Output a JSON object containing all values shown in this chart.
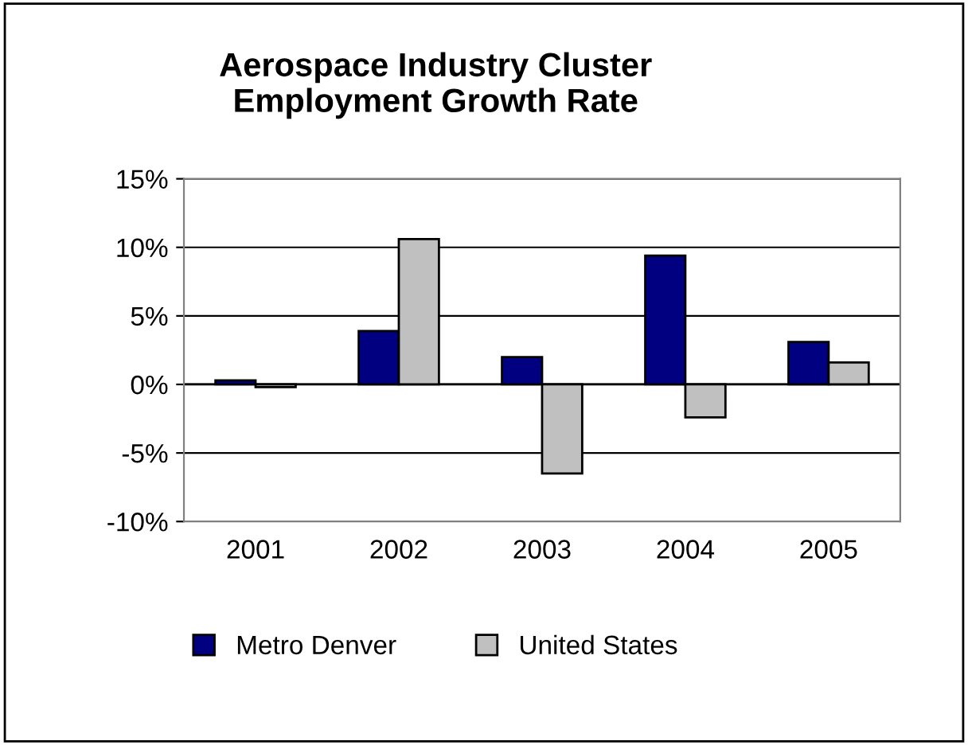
{
  "chart_data": {
    "type": "bar",
    "title": "Aerospace Industry Cluster\nEmployment Growth Rate",
    "categories": [
      "2001",
      "2002",
      "2003",
      "2004",
      "2005"
    ],
    "series": [
      {
        "name": "Metro Denver",
        "color": "#000080",
        "values": [
          0.3,
          3.9,
          2.0,
          9.4,
          3.1
        ]
      },
      {
        "name": "United States",
        "color": "#c0c0c0",
        "values": [
          -0.2,
          10.6,
          -6.5,
          -2.4,
          1.6
        ]
      }
    ],
    "ylim": [
      -10,
      15
    ],
    "yticks": [
      {
        "value": -10,
        "label": "-10%"
      },
      {
        "value": -5,
        "label": "-5%"
      },
      {
        "value": 0,
        "label": "0%"
      },
      {
        "value": 5,
        "label": "5%"
      },
      {
        "value": 10,
        "label": "10%"
      },
      {
        "value": 15,
        "label": "15%"
      }
    ],
    "grid": "y",
    "legend": "bottom"
  }
}
